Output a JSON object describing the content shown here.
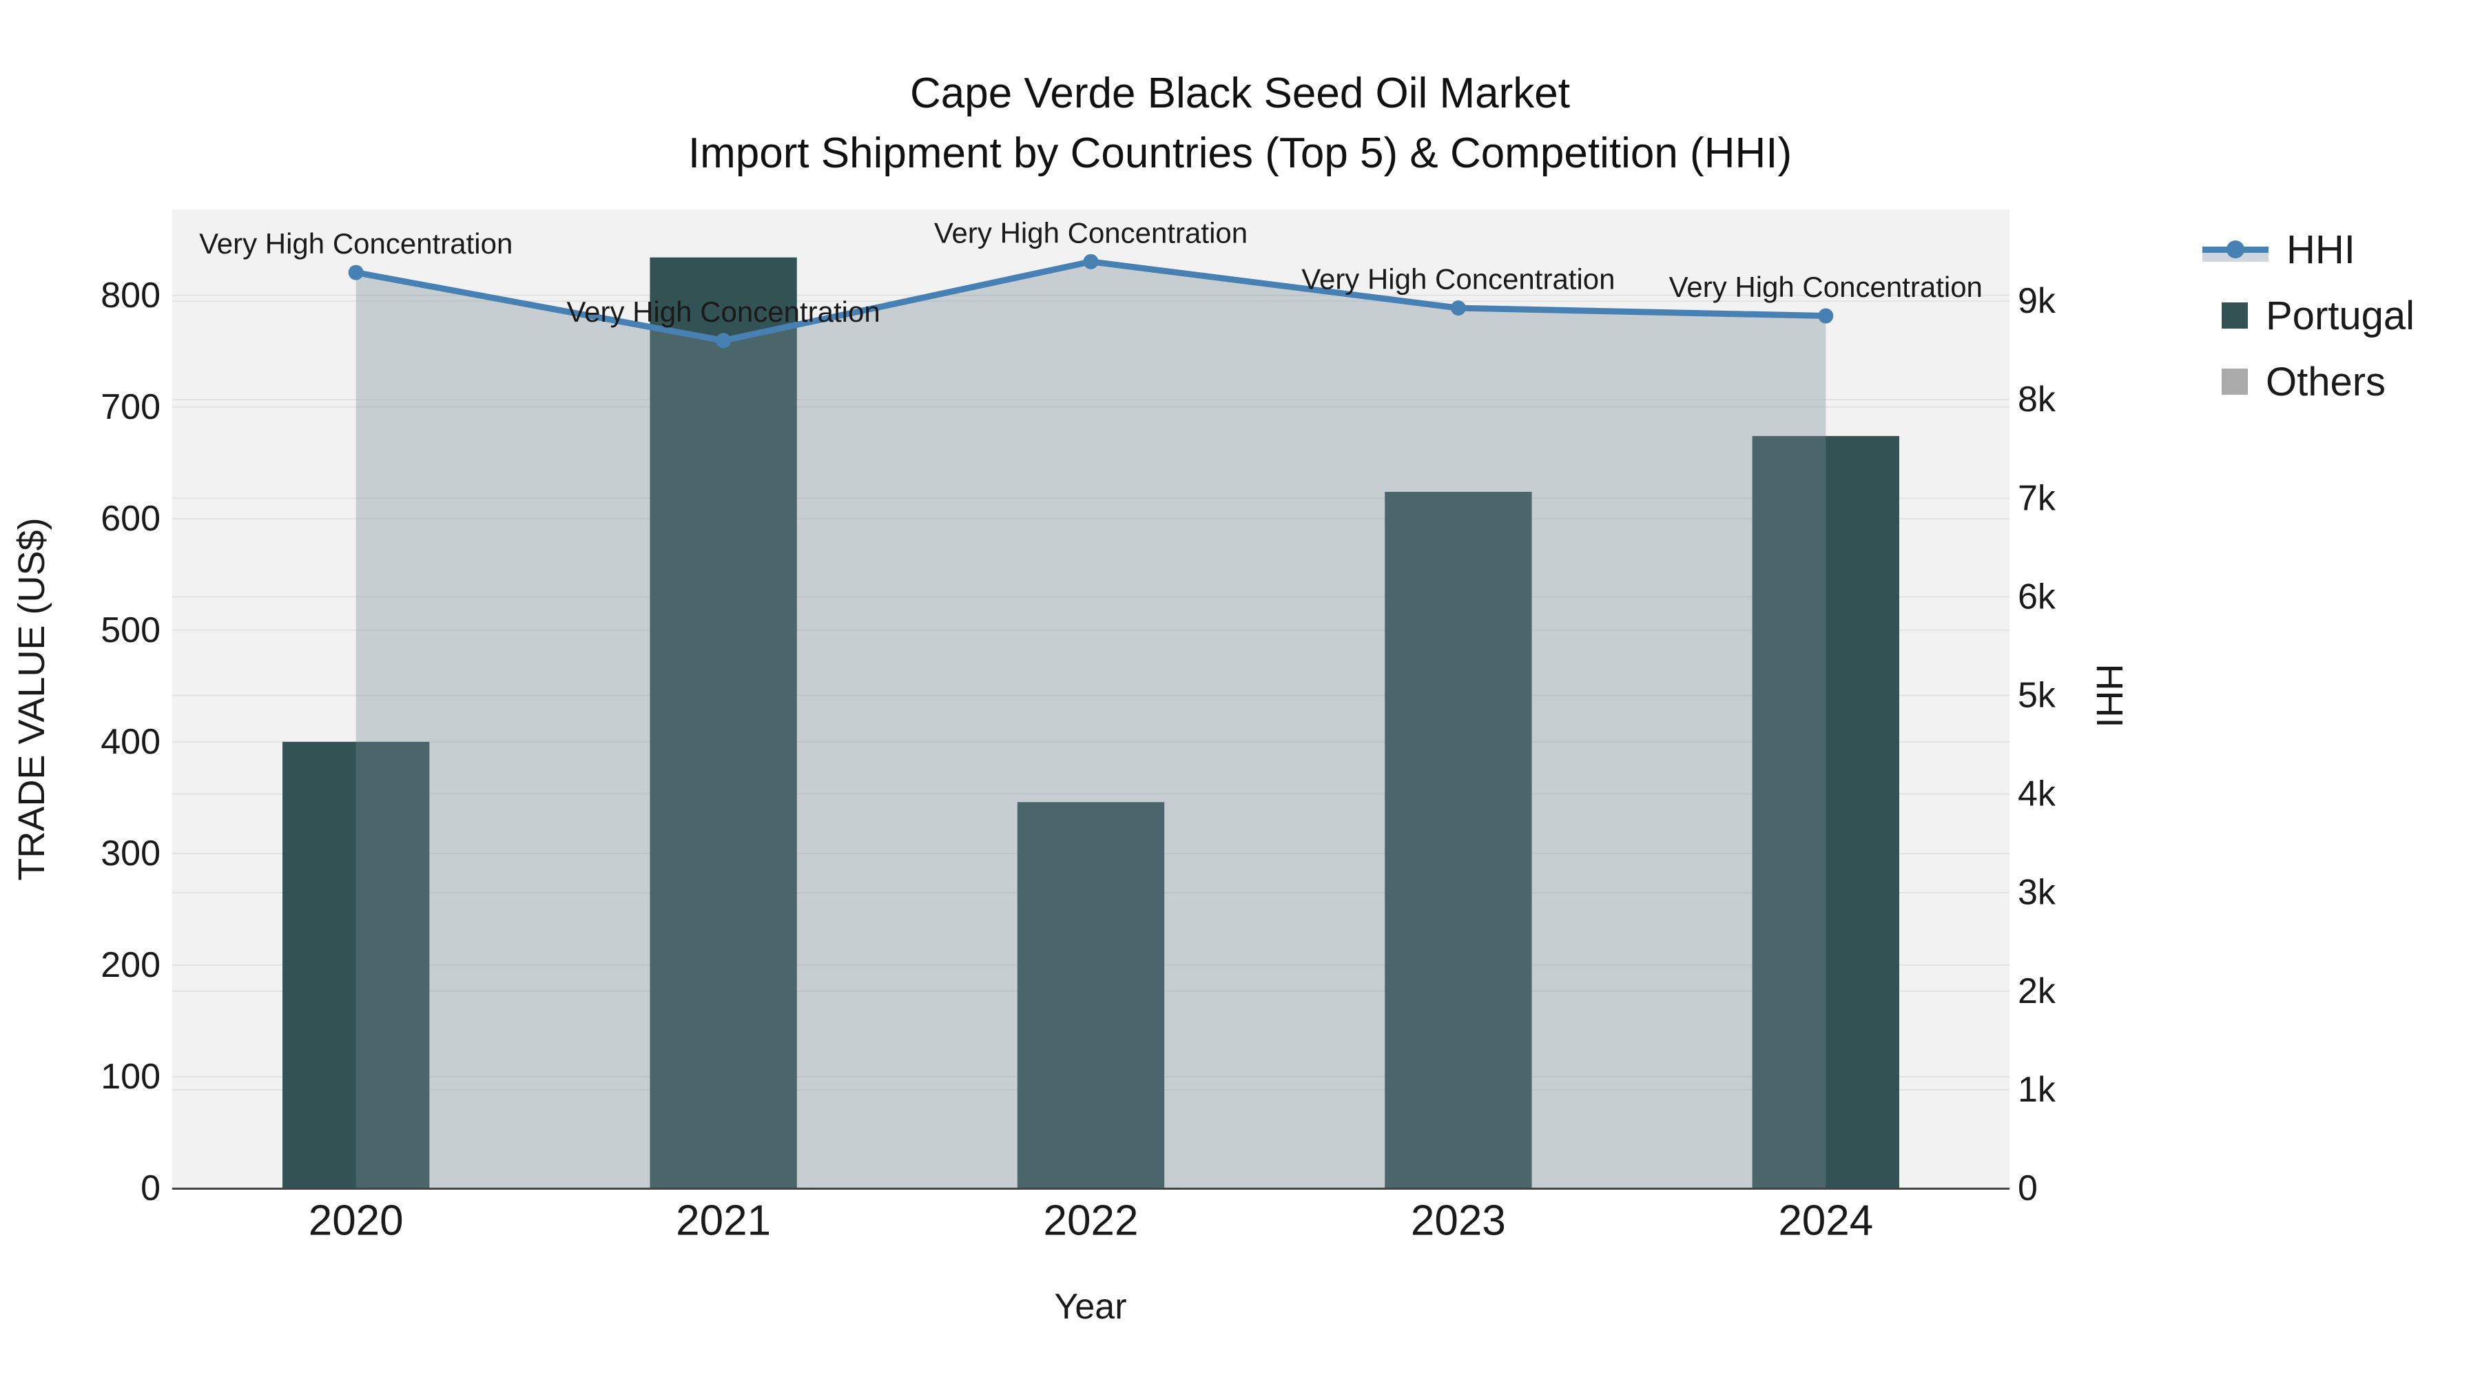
{
  "title": {
    "line1": "Cape Verde Black Seed Oil Market",
    "line2": "Import Shipment by Countries (Top 5) & Competition (HHI)"
  },
  "axes": {
    "left_title": "TRADE VALUE (US$)",
    "right_title": "HHI",
    "x_title": "Year",
    "left_ticks": [
      {
        "label": "0",
        "value": 0
      },
      {
        "label": "100",
        "value": 100
      },
      {
        "label": "200",
        "value": 200
      },
      {
        "label": "300",
        "value": 300
      },
      {
        "label": "400",
        "value": 400
      },
      {
        "label": "500",
        "value": 500
      },
      {
        "label": "600",
        "value": 600
      },
      {
        "label": "700",
        "value": 700
      },
      {
        "label": "800",
        "value": 800
      }
    ],
    "right_ticks": [
      {
        "label": "0",
        "value": 0
      },
      {
        "label": "1k",
        "value": 1000
      },
      {
        "label": "2k",
        "value": 2000
      },
      {
        "label": "3k",
        "value": 3000
      },
      {
        "label": "4k",
        "value": 4000
      },
      {
        "label": "5k",
        "value": 5000
      },
      {
        "label": "6k",
        "value": 6000
      },
      {
        "label": "7k",
        "value": 7000
      },
      {
        "label": "8k",
        "value": 8000
      },
      {
        "label": "9k",
        "value": 9000
      }
    ]
  },
  "legend": {
    "items": [
      {
        "label": "HHI",
        "type": "line",
        "color": "#4781B4"
      },
      {
        "label": "Portugal",
        "type": "swatch",
        "color": "#335254"
      },
      {
        "label": "Others",
        "type": "swatch",
        "color": "#ABABAB"
      }
    ]
  },
  "colors": {
    "bar": "#335254",
    "others": "#ABABAB",
    "line": "#4781B4",
    "area_fill": "rgba(119,139,153,0.35)",
    "plot_bg": "#f2f2f2",
    "grid": "#e2e2e2",
    "baseline": "#444444"
  },
  "chart_data": {
    "type": "bar+line",
    "title": "Cape Verde Black Seed Oil Market — Import Shipment by Countries (Top 5) & Competition (HHI)",
    "categories": [
      "2020",
      "2021",
      "2022",
      "2023",
      "2024"
    ],
    "xlabel": "Year",
    "ylabel_left": "TRADE VALUE (US$)",
    "ylabel_right": "HHI",
    "ylim_left": [
      0,
      877
    ],
    "ylim_right": [
      0,
      9930
    ],
    "grid": true,
    "legend_position": "right",
    "series": [
      {
        "name": "Portugal",
        "type": "bar",
        "axis": "left",
        "values": [
          400,
          834,
          346,
          624,
          674
        ]
      },
      {
        "name": "Others",
        "type": "bar",
        "axis": "left",
        "values": [
          0,
          0,
          0,
          0,
          0
        ]
      },
      {
        "name": "HHI",
        "type": "line+area",
        "axis": "right",
        "values": [
          9290,
          8600,
          9400,
          8930,
          8850
        ],
        "point_labels": [
          "Very High Concentration",
          "Very High Concentration",
          "Very High Concentration",
          "Very High Concentration",
          "Very High Concentration"
        ]
      }
    ]
  }
}
